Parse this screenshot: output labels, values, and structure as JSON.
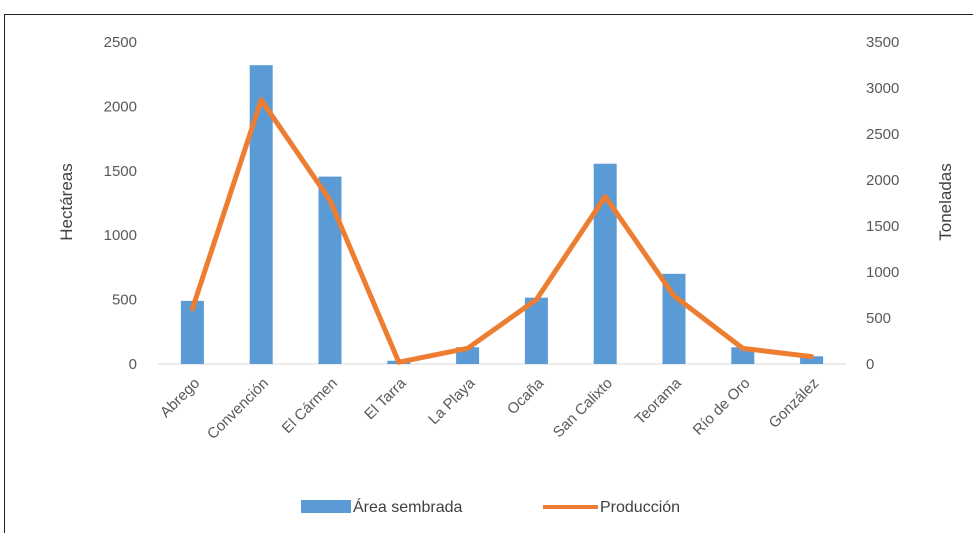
{
  "chart_data": {
    "type": "bar+line",
    "categories": [
      "Abrego",
      "Convención",
      "El Cármen",
      "El Tarra",
      "La Playa",
      "Ocaña",
      "San Calixto",
      "Teorama",
      "Río de Oro",
      "González"
    ],
    "series": [
      {
        "name": "Área sembrada",
        "type": "bar",
        "axis": "left",
        "values": [
          490,
          2320,
          1455,
          25,
          130,
          515,
          1555,
          700,
          130,
          60
        ]
      },
      {
        "name": "Producción",
        "type": "line",
        "axis": "right",
        "values": [
          600,
          2870,
          1780,
          20,
          170,
          700,
          1820,
          740,
          170,
          80
        ]
      }
    ],
    "ylabel_left": "Hectáreas",
    "ylabel_right": "Toneladas",
    "ylim_left": [
      0,
      2500
    ],
    "ylim_right": [
      0,
      3500
    ],
    "yticks_left": [
      "0",
      "500",
      "1000",
      "1500",
      "2000",
      "2500"
    ],
    "yticks_right": [
      "0",
      "500",
      "1000",
      "1500",
      "2000",
      "2500",
      "3000",
      "3500"
    ],
    "legend_position": "bottom",
    "colors": {
      "bar": "#5B9BD5",
      "line": "#ED7D31"
    }
  }
}
